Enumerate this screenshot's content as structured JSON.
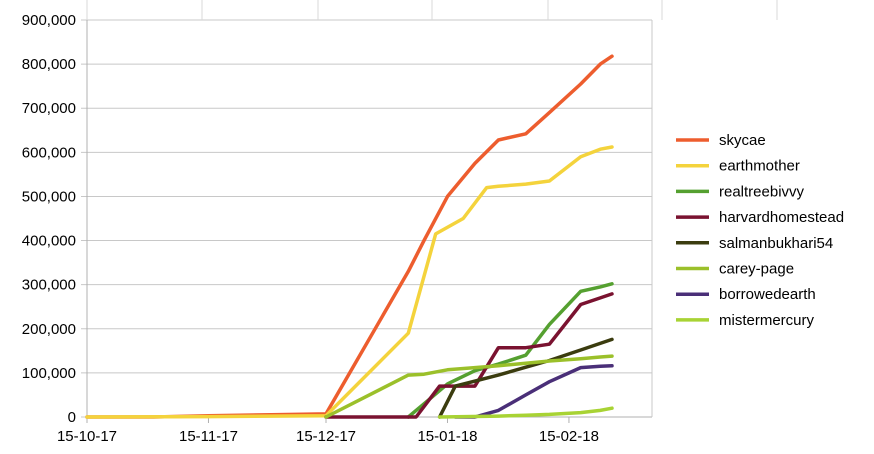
{
  "chart_data": {
    "type": "line",
    "title": "",
    "xlabel": "",
    "ylabel": "",
    "x_type": "date",
    "x_ticks": [
      "2017-10-15",
      "2017-11-15",
      "2017-12-15",
      "2018-01-15",
      "2018-02-15"
    ],
    "x_tick_labels": [
      "15-10-17",
      "15-11-17",
      "15-12-17",
      "15-01-18",
      "15-02-18"
    ],
    "xlim": [
      "2017-10-15",
      "2018-02-26"
    ],
    "ylim": [
      0,
      900000
    ],
    "y_ticks": [
      0,
      100000,
      200000,
      300000,
      400000,
      500000,
      600000,
      700000,
      800000,
      900000
    ],
    "y_tick_labels": [
      "0",
      "100,000",
      "200,000",
      "300,000",
      "400,000",
      "500,000",
      "600,000",
      "700,000",
      "800,000",
      "900,000"
    ],
    "grid": "horizontal",
    "legend_position": "right",
    "series": [
      {
        "name": "skycae",
        "color": "#ed5d2e",
        "x": [
          "2017-10-15",
          "2017-11-01",
          "2017-11-15",
          "2017-12-01",
          "2017-12-15",
          "2018-01-05",
          "2018-01-09",
          "2018-01-15",
          "2018-01-22",
          "2018-01-28",
          "2018-02-04",
          "2018-02-10",
          "2018-02-18",
          "2018-02-23",
          "2018-02-26"
        ],
        "y": [
          0,
          0,
          3000,
          5000,
          7000,
          330000,
          400000,
          500000,
          575000,
          628000,
          642000,
          690000,
          755000,
          800000,
          818000
        ]
      },
      {
        "name": "earthmother",
        "color": "#f4d33c",
        "x": [
          "2017-10-15",
          "2017-11-15",
          "2017-12-15",
          "2018-01-05",
          "2018-01-12",
          "2018-01-19",
          "2018-01-25",
          "2018-01-28",
          "2018-02-04",
          "2018-02-10",
          "2018-02-18",
          "2018-02-23",
          "2018-02-26"
        ],
        "y": [
          0,
          1000,
          3000,
          190000,
          415000,
          450000,
          520000,
          523000,
          528000,
          535000,
          590000,
          607000,
          612000
        ]
      },
      {
        "name": "realtreebivvy",
        "color": "#55a030",
        "x": [
          "2018-01-05",
          "2018-01-09",
          "2018-01-15",
          "2018-01-22",
          "2018-01-28",
          "2018-02-04",
          "2018-02-10",
          "2018-02-18",
          "2018-02-23",
          "2018-02-26"
        ],
        "y": [
          0,
          30000,
          75000,
          105000,
          120000,
          140000,
          210000,
          285000,
          295000,
          302000
        ]
      },
      {
        "name": "harvardhomestead",
        "color": "#7a1230",
        "x": [
          "2017-12-15",
          "2018-01-07",
          "2018-01-13",
          "2018-01-22",
          "2018-01-28",
          "2018-02-04",
          "2018-02-10",
          "2018-02-18",
          "2018-02-23",
          "2018-02-26"
        ],
        "y": [
          0,
          0,
          70000,
          70000,
          157000,
          157000,
          165000,
          255000,
          270000,
          279000
        ]
      },
      {
        "name": "salmanbukhari54",
        "color": "#3b3c0f",
        "x": [
          "2018-01-13",
          "2018-01-17",
          "2018-01-28",
          "2018-02-04",
          "2018-02-10",
          "2018-02-18",
          "2018-02-26"
        ],
        "y": [
          0,
          70000,
          95000,
          113000,
          128000,
          152000,
          176000
        ]
      },
      {
        "name": "carey-page",
        "color": "#9bc02a",
        "x": [
          "2017-12-15",
          "2018-01-05",
          "2018-01-09",
          "2018-01-15",
          "2018-01-22",
          "2018-01-28",
          "2018-02-04",
          "2018-02-10",
          "2018-02-18",
          "2018-02-23",
          "2018-02-26"
        ],
        "y": [
          0,
          95000,
          97000,
          107000,
          112000,
          116000,
          122000,
          127000,
          132000,
          136000,
          138000
        ]
      },
      {
        "name": "borrowedearth",
        "color": "#4a2f78",
        "x": [
          "2018-01-17",
          "2018-01-22",
          "2018-01-28",
          "2018-02-04",
          "2018-02-10",
          "2018-02-18",
          "2018-02-23",
          "2018-02-26"
        ],
        "y": [
          0,
          0,
          15000,
          50000,
          80000,
          112000,
          115000,
          116000
        ]
      },
      {
        "name": "mistermercury",
        "color": "#a8d334",
        "x": [
          "2018-01-13",
          "2018-01-28",
          "2018-02-04",
          "2018-02-10",
          "2018-02-18",
          "2018-02-23",
          "2018-02-26"
        ],
        "y": [
          0,
          2000,
          4000,
          6000,
          10000,
          15000,
          20000
        ]
      }
    ]
  }
}
